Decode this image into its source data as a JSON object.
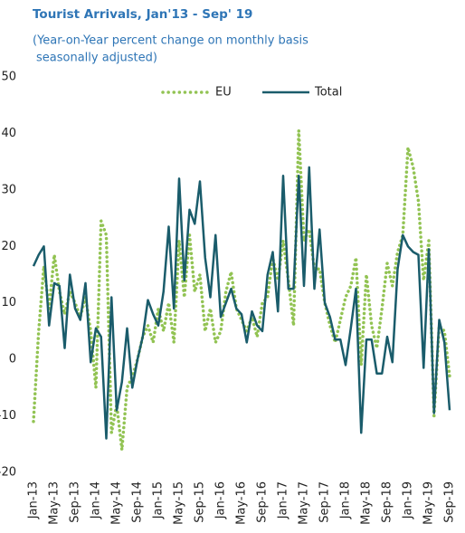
{
  "chart_data": {
    "type": "line",
    "title": "Tourist Arrivals, Jan'13 - Sep' 19",
    "subtitle": [
      "(Year-on-Year percent change on monthly basis",
      "seasonally adjusted)"
    ],
    "categories": [
      "Jan-13",
      null,
      null,
      null,
      "May-13",
      null,
      null,
      null,
      "Sep-13",
      null,
      null,
      null,
      "Jan-14",
      null,
      null,
      null,
      "May-14",
      null,
      null,
      null,
      "Sep-14",
      null,
      null,
      null,
      "Jan-15",
      null,
      null,
      null,
      "May-15",
      null,
      null,
      null,
      "Sep-15",
      null,
      null,
      null,
      "Jan-16",
      null,
      null,
      null,
      "May-16",
      null,
      null,
      null,
      "Sep-16",
      null,
      null,
      null,
      "Jan-17",
      null,
      null,
      null,
      "May-17",
      null,
      null,
      null,
      "Sep-17",
      null,
      null,
      null,
      "Jan-18",
      null,
      null,
      null,
      "May-18",
      null,
      null,
      null,
      "Sep-18",
      null,
      null,
      null,
      "Jan-19",
      null,
      null,
      null,
      "May-19",
      null,
      null,
      null,
      "Sep-19"
    ],
    "series": [
      {
        "name": "EU",
        "color": "#92c353",
        "dash": true,
        "values": [
          -11,
          5,
          16.5,
          9,
          18.5,
          12,
          8,
          12,
          10,
          7.5,
          11,
          5,
          -5,
          24.5,
          22,
          -13,
          -8,
          -16,
          -5,
          -3,
          0,
          4,
          6,
          3,
          9,
          5,
          10,
          3,
          21,
          11,
          22,
          12,
          15,
          5,
          9,
          3,
          5,
          12,
          15.5,
          9,
          7,
          5,
          7.5,
          4,
          10,
          11,
          18,
          14,
          21,
          14,
          6,
          40.5,
          21,
          23,
          16,
          16,
          10,
          6,
          3,
          7,
          11,
          13,
          18,
          -1,
          15,
          6,
          2,
          9,
          17,
          13,
          19,
          22,
          37.5,
          34,
          28,
          14,
          21,
          -10,
          6,
          5,
          -3
        ]
      },
      {
        "name": "Total",
        "color": "#1a5c6b",
        "dash": false,
        "values": [
          16.5,
          18.5,
          20,
          6,
          13.5,
          13,
          2,
          15,
          9,
          7,
          13.5,
          -0.5,
          5.5,
          4,
          -14,
          11,
          -9,
          -4,
          5.5,
          -5,
          0,
          4,
          10.5,
          8,
          6,
          12,
          23.5,
          9,
          32,
          14,
          26.5,
          24,
          31.5,
          18,
          11,
          22,
          7.5,
          10,
          12.5,
          9,
          8,
          3,
          8.5,
          6,
          5,
          15,
          19,
          8.5,
          32.5,
          12.5,
          12.5,
          32.5,
          13,
          34,
          12.5,
          23,
          10,
          7.5,
          3.5,
          3.5,
          -1,
          5.5,
          12.5,
          -13,
          3.5,
          3.5,
          -2.5,
          -2.5,
          4,
          -0.5,
          16,
          22,
          20,
          19,
          18.5,
          -1.5,
          19.5,
          -9.5,
          7,
          3,
          -9
        ]
      }
    ],
    "ylim": [
      -20,
      50
    ],
    "yticks": [
      -20,
      -10,
      0,
      10,
      20,
      30,
      40,
      50
    ],
    "legend": "top",
    "grid": false
  }
}
